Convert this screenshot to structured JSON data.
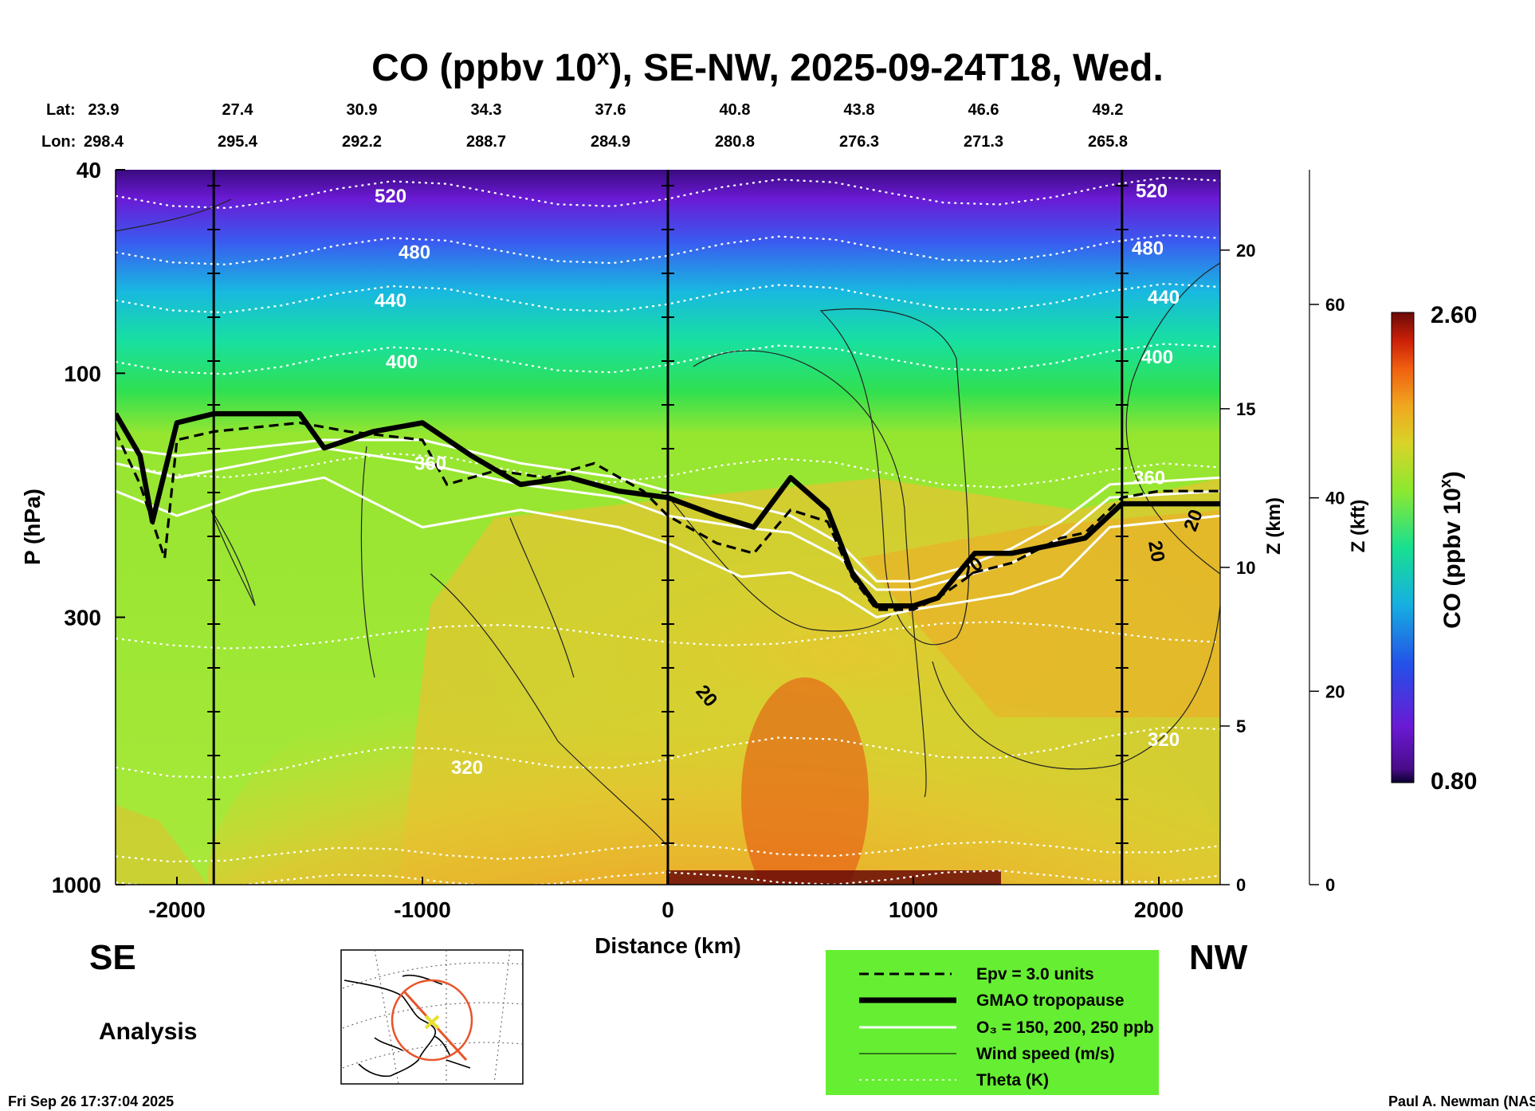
{
  "title": "CO (ppbv 10",
  "title_superscript": "x",
  "title_rest": "), SE-NW, 2025-09-24T18, Wed.",
  "lat_label": "Lat:",
  "lon_label": "Lon:",
  "latitudes": [
    "23.9",
    "27.4",
    "30.9",
    "34.3",
    "37.6",
    "40.8",
    "43.8",
    "46.6",
    "49.2"
  ],
  "longitudes": [
    "298.4",
    "295.4",
    "292.2",
    "288.7",
    "284.9",
    "280.8",
    "276.3",
    "271.3",
    "265.8"
  ],
  "left_end": "SE",
  "right_end": "NW",
  "analysis_label": "Analysis",
  "timestamp": "Fri Sep 26 17:37:04 2025",
  "credit": "Paul A. Newman (NASA",
  "colors": {
    "tropopause": "#000000",
    "ozone": "#ffffff",
    "theta": "#ffffff",
    "wind": "#222222",
    "legend_bg": "#66ee33",
    "map_track": "#e8542a",
    "map_marker": "#e8e030"
  },
  "legend": {
    "items": [
      {
        "label": "Epv = 3.0 units",
        "style": "dashed-black"
      },
      {
        "label": "GMAO tropopause",
        "style": "thick-black"
      },
      {
        "label": "O₃ = 150, 200, 250 ppb",
        "style": "white"
      },
      {
        "label": "Wind speed (m/s)",
        "style": "thin-black"
      },
      {
        "label": "Theta (K)",
        "style": "dotted-white"
      }
    ]
  },
  "colorbar": {
    "label": "CO (ppbv 10",
    "label_superscript": "x",
    "label_rest": ")",
    "min_label": "0.80",
    "max_label": "2.60",
    "min": 0.8,
    "max": 2.6
  },
  "chart_data": {
    "type": "heatmap",
    "title": "CO (ppbv 10^x), SE-NW, 2025-09-24T18, Wed.",
    "xlabel": "Distance (km)",
    "ylabel": "P (hPa)",
    "z_km_label": "Z (km)",
    "z_kft_label": "Z (kft)",
    "x_range": [
      -2250,
      2250
    ],
    "y_range": [
      1000,
      40
    ],
    "y_scale": "log",
    "x_ticks": [
      -2000,
      -1000,
      0,
      1000,
      2000
    ],
    "x_tick_labels": [
      "-2000",
      "-1000",
      "0",
      "1000",
      "2000"
    ],
    "y_ticks": [
      40,
      100,
      300,
      1000
    ],
    "y_tick_labels": [
      "40",
      "100",
      "300",
      "1000"
    ],
    "z_km_ticks": [
      0,
      5,
      10,
      15,
      20
    ],
    "z_km_tick_labels": [
      "0",
      "5",
      "10",
      "15",
      "20"
    ],
    "z_kft_ticks": [
      0,
      20,
      40,
      60
    ],
    "z_kft_tick_labels": [
      "0",
      "20",
      "40",
      "60"
    ],
    "vertical_markers_km": [
      -1850,
      0,
      1850
    ],
    "co_field": {
      "description": "log10 CO mixing ratio; stratosphere low (purple/blue), troposphere high (green-orange), surface plume near x=0..500",
      "stratosphere_value_top": 0.9,
      "tropopause_value": 1.75,
      "troposphere_value": 1.95,
      "boundary_layer_peak": 2.5
    },
    "theta_contours": [
      {
        "value": 520,
        "label": "520"
      },
      {
        "value": 480,
        "label": "480"
      },
      {
        "value": 440,
        "label": "440"
      },
      {
        "value": 400,
        "label": "400"
      },
      {
        "value": 360,
        "label": "360"
      },
      {
        "value": 320,
        "label": "320"
      }
    ],
    "wind_labels": [
      "20",
      "20",
      "20",
      "20"
    ],
    "tropopause_hPa": {
      "x": [
        -2250,
        -2150,
        -2100,
        -2000,
        -1850,
        -1500,
        -1400,
        -1200,
        -1000,
        -800,
        -600,
        -400,
        -200,
        0,
        200,
        350,
        500,
        650,
        750,
        850,
        1000,
        1100,
        1250,
        1400,
        1600,
        1700,
        1850,
        2000,
        2250
      ],
      "p": [
        120,
        145,
        195,
        125,
        120,
        120,
        140,
        130,
        125,
        145,
        165,
        160,
        170,
        175,
        190,
        200,
        160,
        185,
        245,
        285,
        285,
        275,
        225,
        225,
        215,
        210,
        180,
        180,
        180
      ]
    },
    "epv_hPa": {
      "x": [
        -2250,
        -2150,
        -2050,
        -2000,
        -1850,
        -1500,
        -1300,
        -1000,
        -900,
        -700,
        -500,
        -300,
        -100,
        0,
        200,
        350,
        500,
        650,
        750,
        850,
        1000,
        1100,
        1250,
        1400,
        1600,
        1700,
        1850,
        2000,
        2250
      ],
      "p": [
        130,
        165,
        230,
        135,
        130,
        125,
        130,
        135,
        165,
        155,
        160,
        150,
        170,
        190,
        215,
        225,
        185,
        195,
        250,
        290,
        290,
        275,
        245,
        235,
        210,
        205,
        175,
        170,
        170
      ]
    },
    "ozone_hPa": [
      {
        "value": 150,
        "x": [
          -2250,
          -2000,
          -1700,
          -1400,
          -1000,
          -600,
          -200,
          0,
          300,
          500,
          700,
          850,
          1000,
          1200,
          1400,
          1600,
          1800,
          2250
        ],
        "p": [
          140,
          145,
          140,
          135,
          135,
          150,
          160,
          170,
          180,
          190,
          215,
          255,
          255,
          240,
          220,
          195,
          165,
          160
        ]
      },
      {
        "value": 200,
        "x": [
          -2250,
          -2000,
          -1700,
          -1400,
          -1000,
          -600,
          -200,
          0,
          300,
          500,
          700,
          850,
          1000,
          1200,
          1400,
          1600,
          1800,
          2250
        ],
        "p": [
          150,
          160,
          150,
          140,
          150,
          165,
          175,
          190,
          200,
          205,
          230,
          265,
          265,
          250,
          235,
          210,
          175,
          170
        ]
      },
      {
        "value": 250,
        "x": [
          -2250,
          -2000,
          -1700,
          -1400,
          -1000,
          -600,
          -200,
          0,
          300,
          500,
          700,
          850,
          1000,
          1200,
          1400,
          1600,
          1800,
          2250
        ],
        "p": [
          170,
          190,
          170,
          160,
          200,
          185,
          200,
          215,
          250,
          245,
          270,
          300,
          290,
          280,
          270,
          250,
          200,
          190
        ]
      }
    ]
  }
}
